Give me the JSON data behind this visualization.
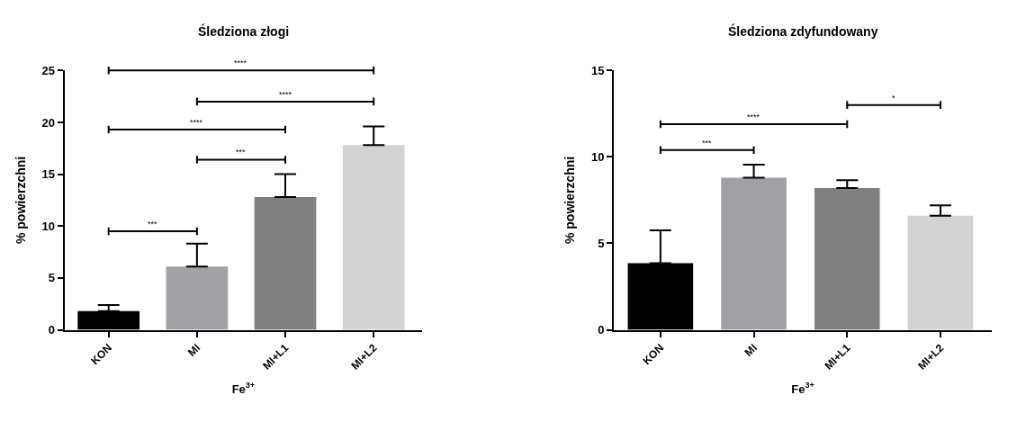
{
  "chart_data": [
    {
      "type": "bar",
      "title": "Śledziona złogi",
      "xlabel": "Fe$^{3+}$",
      "ylabel": "% powierzchni",
      "categories": [
        "KON",
        "MI",
        "MI+L1",
        "MI+L2"
      ],
      "values": [
        1.8,
        6.1,
        12.8,
        17.8
      ],
      "colors": [
        "#000000",
        "#a0a0a5",
        "#808080",
        "#d3d3d3"
      ],
      "errors": [
        [
          1.8,
          2.4
        ],
        [
          6.1,
          8.3
        ],
        [
          12.8,
          15.0
        ],
        [
          17.8,
          19.6
        ]
      ],
      "ylim": [
        0,
        25
      ],
      "yticks": [
        0,
        5,
        10,
        15,
        20,
        25
      ],
      "annotations": [
        "****",
        "****",
        "****",
        "***",
        "***"
      ]
    },
    {
      "type": "bar",
      "title": "Śledziona zdyfundowany",
      "xlabel": "Fe$^{3+}$",
      "ylabel": "% powierzchni",
      "categories": [
        "KON",
        "MI",
        "MI+L1",
        "MI+L2"
      ],
      "values": [
        3.85,
        8.8,
        8.2,
        6.6
      ],
      "colors": [
        "#000000",
        "#a0a0a5",
        "#808080",
        "#d3d3d3"
      ],
      "errors": [
        [
          3.85,
          5.75
        ],
        [
          8.8,
          9.55
        ],
        [
          8.2,
          8.65
        ],
        [
          6.6,
          7.2
        ]
      ],
      "ylim": [
        0,
        15
      ],
      "yticks": [
        0,
        5,
        10,
        15
      ],
      "annotations": [
        "*",
        "****",
        "***"
      ]
    }
  ]
}
